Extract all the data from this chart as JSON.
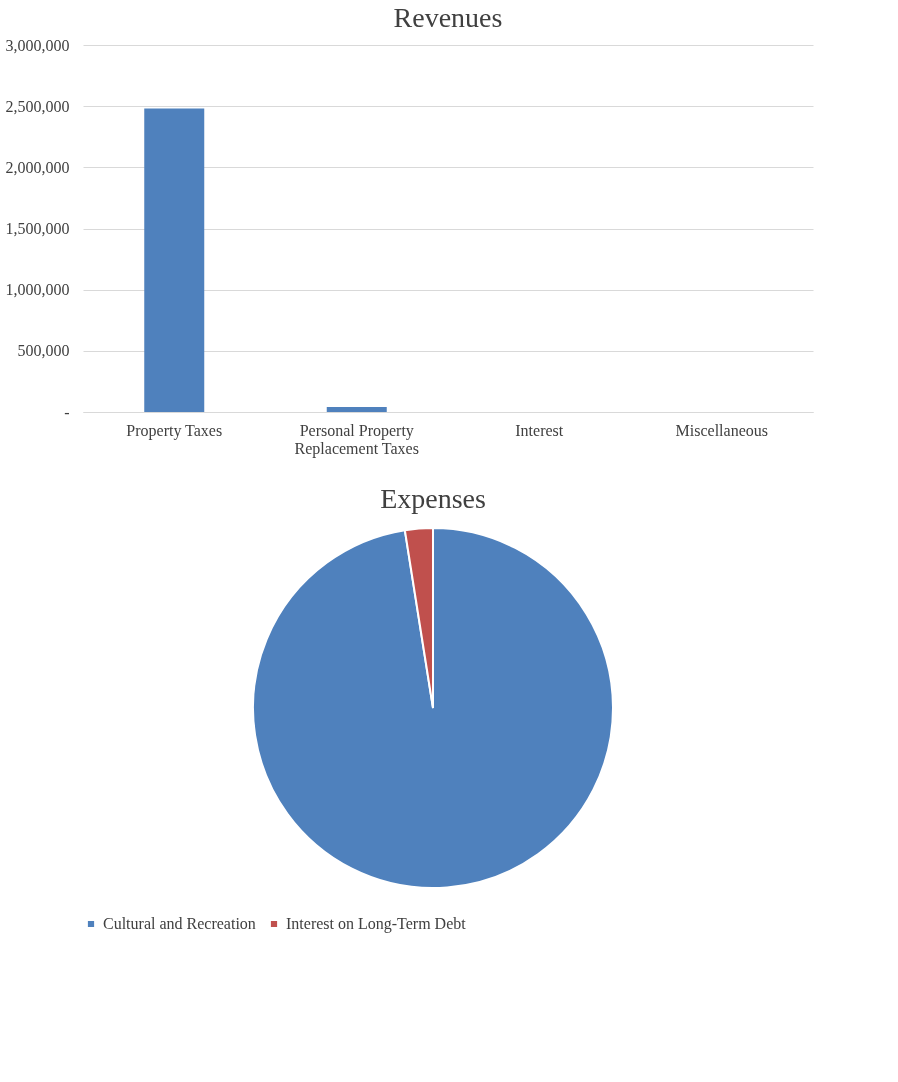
{
  "chart_data": [
    {
      "type": "bar",
      "title": "Revenues",
      "categories": [
        "Property Taxes",
        "Personal Property Replacement Taxes",
        "Interest",
        "Miscellaneous"
      ],
      "values": [
        2480000,
        40000,
        0,
        0
      ],
      "color": "#4f81bd",
      "ylim": [
        0,
        3000000
      ],
      "yticks": [
        {
          "value": 0,
          "label": "-"
        },
        {
          "value": 500000,
          "label": "500,000"
        },
        {
          "value": 1000000,
          "label": "1,000,000"
        },
        {
          "value": 1500000,
          "label": "1,500,000"
        },
        {
          "value": 2000000,
          "label": "2,000,000"
        },
        {
          "value": 2500000,
          "label": "2,500,000"
        },
        {
          "value": 3000000,
          "label": "3,000,000"
        }
      ],
      "grid": "y"
    },
    {
      "type": "pie",
      "title": "Expenses",
      "categories": [
        "Cultural and Recreation",
        "Interest on Long-Term Debt"
      ],
      "values": [
        97.5,
        2.5
      ],
      "colors": [
        "#4f81bd",
        "#c0504d"
      ],
      "legend": "bottom"
    }
  ]
}
